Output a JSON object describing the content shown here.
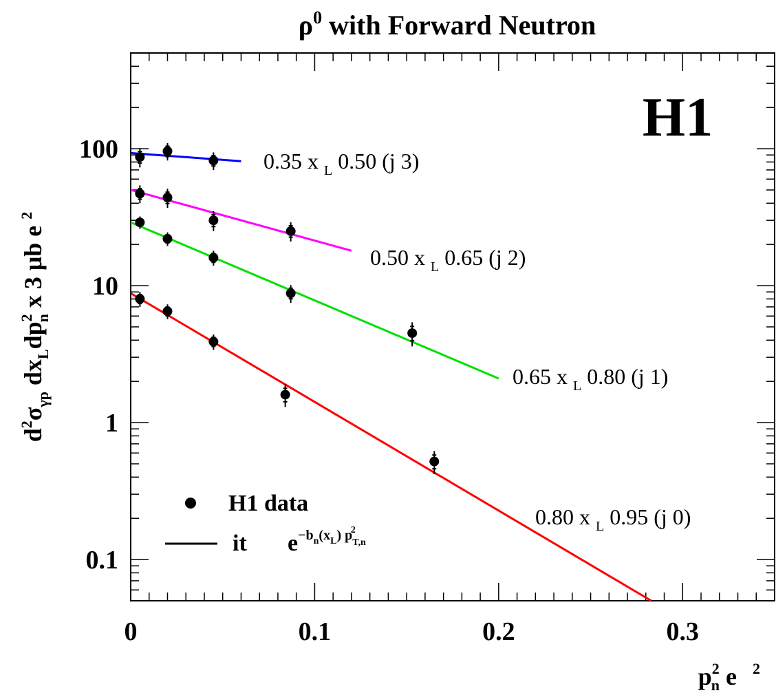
{
  "chart_data": {
    "type": "scatter",
    "title": "ρ",
    "title_sup": "0",
    "title_rest": " with Forward  Neutron",
    "experiment_label": "H1",
    "ylabel": {
      "a": "d",
      "a_sup": "2",
      "b": "σ",
      "b_sub": "γp",
      "c": " dx",
      "c_sub": "L",
      "d": "dp",
      "d_sup": "2",
      "d_sub": "n",
      "e": "  x 3  ",
      "f": "μb",
      "g": " e ",
      "g_sup": "2"
    },
    "xlabel": {
      "a": "p",
      "a_sup": "2",
      "a_sub": "n",
      "b": "  e ",
      "b_sup": "2"
    },
    "x_axis": {
      "scale": "linear",
      "range": [
        0,
        0.35
      ],
      "ticks": [
        0,
        0.1,
        0.2,
        0.3
      ],
      "tick_labels": [
        "0",
        "0.1",
        "0.2",
        "0.3"
      ]
    },
    "y_axis": {
      "scale": "log",
      "range": [
        0.05,
        500
      ],
      "ticks": [
        0.1,
        1,
        10,
        100
      ],
      "tick_labels": [
        "0.1",
        "1",
        "10",
        "100"
      ]
    },
    "legend": {
      "position": "bottom-left",
      "data_label": "H1 data",
      "fit_label": "it",
      "fit_formula": {
        "base": "e",
        "sup1": "−b",
        "sup1_sub": "n",
        "sup2": "(x",
        "sup2_sub": "L",
        "sup3": ") p",
        "sup3_sub": "T,n",
        "sup3_sup": "2"
      }
    },
    "series": [
      {
        "name": "0.35 x L 0.50  (j 3)",
        "label": {
          "a": "0.35 x ",
          "sub": "L",
          "b": " 0.50   (j 3)"
        },
        "color": "#0000ff",
        "points": [
          [
            0.005,
            87
          ],
          [
            0.02,
            96
          ],
          [
            0.045,
            82
          ]
        ],
        "errors": [
          14,
          14,
          12
        ],
        "fit": [
          [
            0,
            93
          ],
          [
            0.06,
            81
          ]
        ]
      },
      {
        "name": "0.50 x L 0.65  (j 2)",
        "label": {
          "a": "0.50 x ",
          "sub": "L",
          "b": " 0.65   (j 2)"
        },
        "color": "#ff00ff",
        "points": [
          [
            0.005,
            47
          ],
          [
            0.02,
            44
          ],
          [
            0.045,
            30
          ],
          [
            0.087,
            25
          ]
        ],
        "errors": [
          7,
          7,
          5,
          4
        ],
        "fit": [
          [
            0,
            50
          ],
          [
            0.12,
            18
          ]
        ]
      },
      {
        "name": "0.65 x L 0.80  (j 1)",
        "label": {
          "a": "0.65 x ",
          "sub": "L",
          "b": " 0.80   (j 1)"
        },
        "color": "#00e000",
        "points": [
          [
            0.005,
            29
          ],
          [
            0.02,
            22
          ],
          [
            0.045,
            16
          ],
          [
            0.087,
            8.8
          ],
          [
            0.153,
            4.5
          ]
        ],
        "errors": [
          3,
          2.5,
          2,
          1.3,
          0.9
        ],
        "fit": [
          [
            0,
            29
          ],
          [
            0.2,
            2.1
          ]
        ]
      },
      {
        "name": "0.80 x L 0.95  (j 0)",
        "label": {
          "a": "0.80 x ",
          "sub": "L",
          "b": " 0.95   (j 0)"
        },
        "color": "#ff0000",
        "points": [
          [
            0.005,
            8
          ],
          [
            0.02,
            6.5
          ],
          [
            0.045,
            3.9
          ],
          [
            0.084,
            1.6
          ],
          [
            0.165,
            0.52
          ]
        ],
        "errors": [
          1.0,
          0.8,
          0.5,
          0.3,
          0.1
        ],
        "fit": [
          [
            0,
            8.8
          ],
          [
            0.283,
            0.05
          ]
        ]
      }
    ]
  }
}
